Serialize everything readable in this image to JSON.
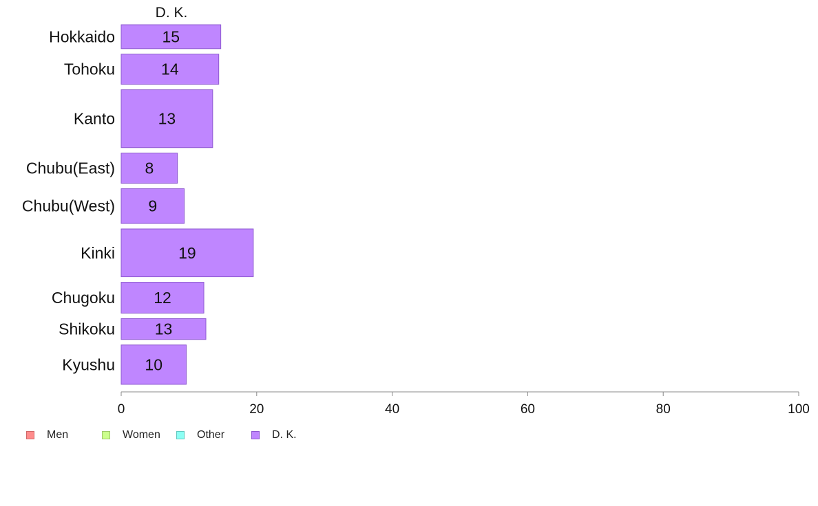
{
  "chart_data": {
    "type": "bar",
    "orientation": "horizontal",
    "title": "D. K.",
    "categories": [
      "Hokkaido",
      "Tohoku",
      "Kanto",
      "Chubu(East)",
      "Chubu(West)",
      "Kinki",
      "Chugoku",
      "Shikoku",
      "Kyushu"
    ],
    "series": [
      {
        "name": "D. K.",
        "values": [
          15,
          14,
          13,
          8,
          9,
          19,
          12,
          13,
          10
        ],
        "color": "#bf86ff"
      }
    ],
    "bar_value_scale": [
      14.7,
      14.4,
      13.5,
      8.3,
      9.3,
      19.5,
      12.2,
      12.5,
      9.6
    ],
    "bar_thickness_weights": [
      0.62,
      0.78,
      1.5,
      0.78,
      0.9,
      1.24,
      0.8,
      0.54,
      1.02
    ],
    "xlim": [
      0,
      100
    ],
    "xticks": [
      0,
      20,
      40,
      60,
      80,
      100
    ],
    "xlabel": "",
    "ylabel": "",
    "grid": false,
    "legend": {
      "position": "bottom-left",
      "items": [
        {
          "label": "Men",
          "color": "#ff8c8c",
          "border": "#d06868"
        },
        {
          "label": "Women",
          "color": "#ccff8c",
          "border": "#9ec86a"
        },
        {
          "label": "Other",
          "color": "#8cfff4",
          "border": "#62c8be"
        },
        {
          "label": "D. K.",
          "color": "#bf86ff",
          "border": "#8e5ad0"
        }
      ]
    }
  }
}
